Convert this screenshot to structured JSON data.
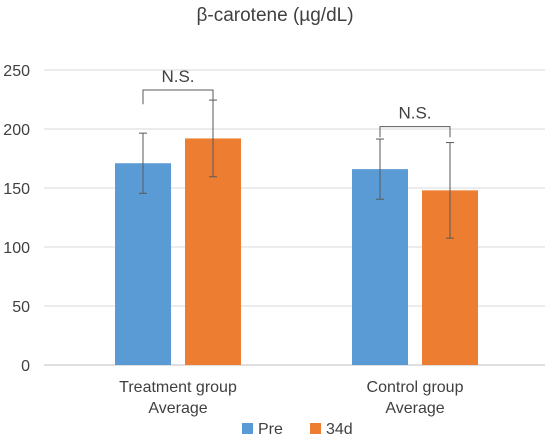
{
  "chart_data": {
    "type": "bar",
    "title": "β-carotene (µg/dL)",
    "categories": [
      "Treatment group\nAverage",
      "Control group\nAverage"
    ],
    "series": [
      {
        "name": "Pre",
        "color": "#5b9bd5",
        "values": [
          171,
          166
        ],
        "errors": [
          25.5,
          25.5
        ]
      },
      {
        "name": "34d",
        "color": "#ed7d31",
        "values": [
          192,
          148
        ],
        "errors": [
          32.5,
          40.5
        ]
      }
    ],
    "ylim": [
      0,
      250
    ],
    "yticks": [
      0,
      50,
      100,
      150,
      200,
      250
    ],
    "grid": true,
    "legend": "bottom",
    "annotations": [
      {
        "label": "N.S.",
        "category_index": 0,
        "bracket_top": 237,
        "bracket_bottom": 233,
        "legs_to": [
          221,
          221
        ]
      },
      {
        "label": "N.S.",
        "category_index": 1,
        "bracket_top": 206,
        "bracket_bottom": 202,
        "legs_to": [
          193,
          193
        ]
      }
    ]
  }
}
